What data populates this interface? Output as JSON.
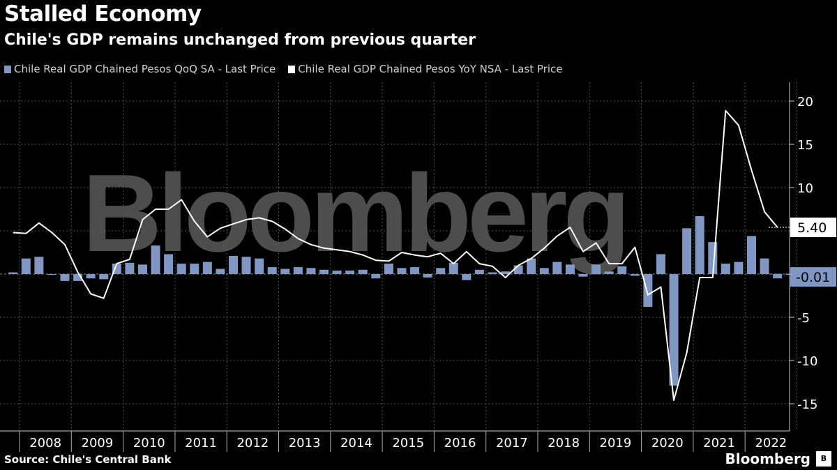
{
  "chart_data": {
    "type": "bar",
    "title": "Stalled Economy",
    "subtitle": "Chile's GDP remains unchanged from previous quarter",
    "source": "Source: Chile's Central Bank",
    "brand": "Bloomberg",
    "watermark": "Bloomberg",
    "legend_placement": "top-left",
    "grid": true,
    "ylim": [
      -17,
      22
    ],
    "yticks": [
      -15,
      -10,
      -5,
      0,
      5,
      10,
      15,
      20
    ],
    "ytick_labels": [
      "-15",
      "-10",
      "-5",
      "0",
      "5",
      "10",
      "15",
      "20"
    ],
    "year_labels": [
      "2008",
      "2009",
      "2010",
      "2011",
      "2012",
      "2013",
      "2014",
      "2015",
      "2016",
      "2017",
      "2018",
      "2019",
      "2020",
      "2021",
      "2022"
    ],
    "colors": {
      "bar": "#7f97c2",
      "line": "#ffffff",
      "grid": "#555555",
      "background": "#000000"
    },
    "series": [
      {
        "name": "Chile Real GDP Chained Pesos QoQ SA - Last Price",
        "type": "bar",
        "x_start": "2007-Q4",
        "values": [
          0.2,
          1.8,
          2.0,
          -0.1,
          -0.8,
          -0.8,
          -0.5,
          -0.6,
          1.2,
          1.3,
          1.1,
          3.3,
          2.3,
          1.2,
          1.2,
          1.4,
          0.6,
          2.1,
          2.0,
          1.8,
          0.8,
          0.6,
          0.8,
          0.7,
          0.5,
          0.4,
          0.4,
          0.5,
          -0.5,
          1.2,
          0.7,
          0.8,
          -0.4,
          0.7,
          1.3,
          -0.7,
          0.5,
          0.2,
          0.3,
          1.0,
          1.8,
          0.7,
          1.4,
          1.1,
          -0.3,
          1.1,
          0.3,
          0.9,
          -0.2,
          -3.8,
          2.3,
          -12.9,
          5.3,
          6.7,
          3.7,
          1.2,
          1.4,
          4.4,
          1.8,
          -0.5,
          -0.01
        ],
        "last_label": "-0.01"
      },
      {
        "name": "Chile Real GDP Chained Pesos YoY NSA - Last Price",
        "type": "line",
        "x_start": "2007-Q4",
        "values": [
          4.8,
          4.7,
          5.9,
          4.8,
          3.4,
          0.2,
          -2.3,
          -2.8,
          1.2,
          1.7,
          6.3,
          7.5,
          7.5,
          8.6,
          6.1,
          4.3,
          5.3,
          5.8,
          6.3,
          6.5,
          6.1,
          5.2,
          4.1,
          3.4,
          3.0,
          2.8,
          2.6,
          2.2,
          1.6,
          1.5,
          2.5,
          2.2,
          2.0,
          2.4,
          1.2,
          2.6,
          1.2,
          0.9,
          -0.4,
          1.0,
          1.8,
          3.0,
          4.4,
          5.4,
          2.6,
          3.6,
          1.2,
          1.2,
          3.1,
          -2.4,
          -1.5,
          -14.6,
          -9.1,
          -0.4,
          -0.4,
          18.9,
          17.2,
          12.0,
          7.2,
          5.4
        ],
        "last_label": "5.40"
      }
    ]
  }
}
